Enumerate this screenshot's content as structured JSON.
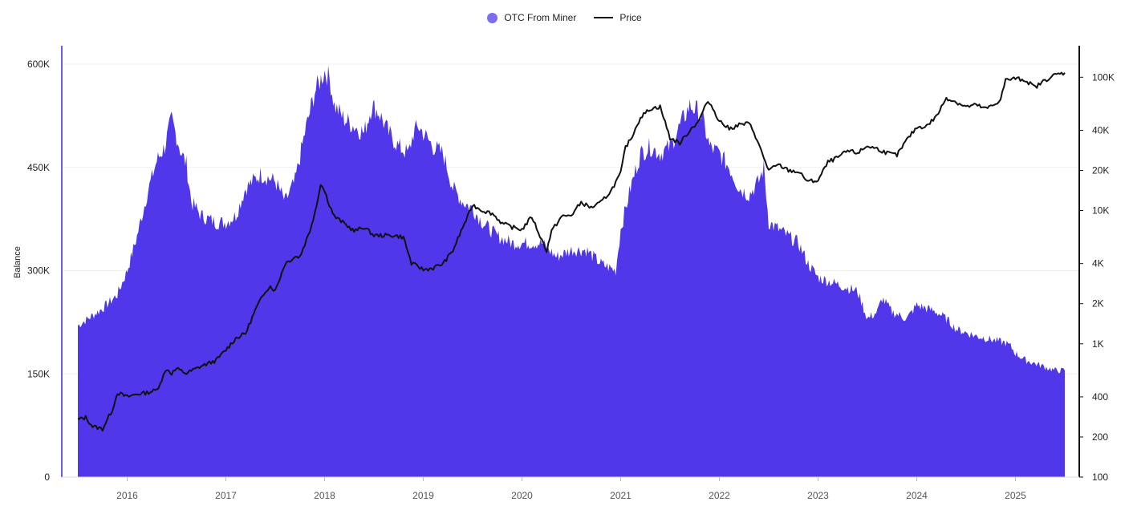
{
  "legend": {
    "series1_label": "OTC From Miner",
    "series2_label": "Price"
  },
  "colors": {
    "balance": "#5038EA",
    "price": "#111111",
    "left_axis": "#6B5CF0",
    "grid": "#EFEFF4"
  },
  "chart_data": {
    "type": "area",
    "xlabel": "",
    "ylabel": "Balance",
    "x_ticks": [
      "2016",
      "2017",
      "2018",
      "2019",
      "2020",
      "2021",
      "2022",
      "2023",
      "2024",
      "2025"
    ],
    "x_range": [
      2015.5,
      2025.5
    ],
    "y_left": {
      "range": [
        0,
        600000
      ],
      "ticks": [
        0,
        150000,
        300000,
        450000,
        600000
      ],
      "tick_labels": [
        "0",
        "150K",
        "300K",
        "450K",
        "600K"
      ]
    },
    "y_right": {
      "scale": "log",
      "range": [
        100,
        140000
      ],
      "ticks": [
        100,
        200,
        400,
        1000,
        2000,
        4000,
        10000,
        20000,
        40000,
        100000
      ],
      "tick_labels": [
        "100",
        "200",
        "400",
        "1K",
        "2K",
        "4K",
        "10K",
        "20K",
        "40K",
        "100K"
      ]
    },
    "grid": "horizontal",
    "legend_position": "top-center",
    "series": [
      {
        "name": "OTC From Miner",
        "kind": "area",
        "axis": "left",
        "x": [
          2015.5,
          2015.6,
          2015.75,
          2015.9,
          2016.0,
          2016.1,
          2016.2,
          2016.3,
          2016.38,
          2016.45,
          2016.55,
          2016.6,
          2016.65,
          2016.75,
          2016.9,
          2017.0,
          2017.1,
          2017.2,
          2017.35,
          2017.5,
          2017.6,
          2017.7,
          2017.8,
          2017.9,
          2018.0,
          2018.05,
          2018.1,
          2018.2,
          2018.3,
          2018.4,
          2018.48,
          2018.55,
          2018.65,
          2018.75,
          2018.85,
          2018.9,
          2018.95,
          2019.0,
          2019.1,
          2019.2,
          2019.3,
          2019.35,
          2019.4,
          2019.5,
          2019.6,
          2019.75,
          2019.9,
          2020.0,
          2020.2,
          2020.35,
          2020.5,
          2020.65,
          2020.8,
          2020.95,
          2021.0,
          2021.1,
          2021.2,
          2021.3,
          2021.4,
          2021.5,
          2021.6,
          2021.7,
          2021.8,
          2021.85,
          2021.9,
          2022.0,
          2022.1,
          2022.2,
          2022.3,
          2022.4,
          2022.45,
          2022.5,
          2022.6,
          2022.7,
          2022.8,
          2022.9,
          2023.0,
          2023.2,
          2023.4,
          2023.5,
          2023.6,
          2023.65,
          2023.75,
          2023.9,
          2024.0,
          2024.1,
          2024.2,
          2024.3,
          2024.4,
          2024.5,
          2024.6,
          2024.75,
          2024.9,
          2024.95,
          2025.0,
          2025.1,
          2025.2,
          2025.3,
          2025.4,
          2025.5
        ],
        "values": [
          220000,
          230000,
          245000,
          265000,
          300000,
          350000,
          410000,
          460000,
          480000,
          520000,
          470000,
          455000,
          400000,
          380000,
          370000,
          370000,
          380000,
          420000,
          440000,
          430000,
          400000,
          430000,
          500000,
          560000,
          590000,
          580000,
          540000,
          520000,
          510000,
          500000,
          540000,
          530000,
          500000,
          480000,
          470000,
          500000,
          510000,
          500000,
          480000,
          470000,
          420000,
          410000,
          400000,
          390000,
          370000,
          350000,
          340000,
          340000,
          340000,
          320000,
          330000,
          330000,
          310000,
          300000,
          360000,
          420000,
          470000,
          480000,
          470000,
          480000,
          510000,
          540000,
          530000,
          510000,
          480000,
          470000,
          450000,
          420000,
          410000,
          430000,
          450000,
          370000,
          360000,
          350000,
          340000,
          310000,
          290000,
          280000,
          270000,
          230000,
          240000,
          260000,
          240000,
          230000,
          250000,
          245000,
          240000,
          230000,
          215000,
          210000,
          205000,
          200000,
          195000,
          190000,
          180000,
          170000,
          165000,
          160000,
          155000,
          155000
        ]
      },
      {
        "name": "Price",
        "kind": "line",
        "axis": "right",
        "x": [
          2015.5,
          2015.58,
          2015.65,
          2015.75,
          2015.85,
          2015.9,
          2016.0,
          2016.1,
          2016.2,
          2016.3,
          2016.4,
          2016.45,
          2016.5,
          2016.6,
          2016.75,
          2016.9,
          2017.0,
          2017.1,
          2017.2,
          2017.3,
          2017.4,
          2017.45,
          2017.5,
          2017.6,
          2017.7,
          2017.75,
          2017.85,
          2017.92,
          2017.96,
          2018.0,
          2018.05,
          2018.1,
          2018.2,
          2018.3,
          2018.4,
          2018.5,
          2018.6,
          2018.7,
          2018.8,
          2018.88,
          2018.95,
          2019.0,
          2019.1,
          2019.2,
          2019.3,
          2019.4,
          2019.45,
          2019.5,
          2019.6,
          2019.7,
          2019.8,
          2019.9,
          2020.0,
          2020.1,
          2020.2,
          2020.25,
          2020.3,
          2020.4,
          2020.5,
          2020.6,
          2020.7,
          2020.8,
          2020.9,
          2021.0,
          2021.05,
          2021.1,
          2021.2,
          2021.3,
          2021.4,
          2021.5,
          2021.6,
          2021.7,
          2021.8,
          2021.85,
          2021.9,
          2022.0,
          2022.1,
          2022.2,
          2022.3,
          2022.35,
          2022.4,
          2022.5,
          2022.6,
          2022.7,
          2022.8,
          2022.9,
          2023.0,
          2023.1,
          2023.2,
          2023.3,
          2023.4,
          2023.5,
          2023.6,
          2023.7,
          2023.8,
          2023.9,
          2024.0,
          2024.1,
          2024.2,
          2024.3,
          2024.4,
          2024.5,
          2024.6,
          2024.7,
          2024.8,
          2024.85,
          2024.9,
          2025.0,
          2025.1,
          2025.2,
          2025.3,
          2025.4,
          2025.5
        ],
        "values": [
          270,
          280,
          240,
          230,
          320,
          430,
          400,
          420,
          430,
          450,
          650,
          600,
          650,
          600,
          680,
          750,
          900,
          1100,
          1200,
          1800,
          2500,
          2700,
          2500,
          4000,
          4500,
          4500,
          7000,
          11000,
          16000,
          14000,
          11000,
          9000,
          8000,
          7000,
          7500,
          6500,
          6500,
          6500,
          6300,
          4000,
          3800,
          3600,
          3700,
          4000,
          5000,
          7500,
          9000,
          11000,
          10000,
          9500,
          8000,
          7500,
          7200,
          9000,
          6000,
          5000,
          7000,
          9000,
          9200,
          11500,
          10500,
          11500,
          14000,
          19000,
          30000,
          34000,
          50000,
          58000,
          60000,
          35000,
          32000,
          40000,
          48000,
          60000,
          65000,
          47000,
          41000,
          44000,
          45000,
          39000,
          31000,
          20000,
          22000,
          20000,
          19500,
          16500,
          16800,
          23000,
          25000,
          28000,
          27000,
          30500,
          29000,
          27000,
          26000,
          34000,
          42000,
          43000,
          51000,
          70000,
          65000,
          60000,
          62000,
          58000,
          63000,
          69000,
          95000,
          98000,
          95000,
          84000,
          95000,
          104000,
          108000
        ]
      }
    ]
  }
}
